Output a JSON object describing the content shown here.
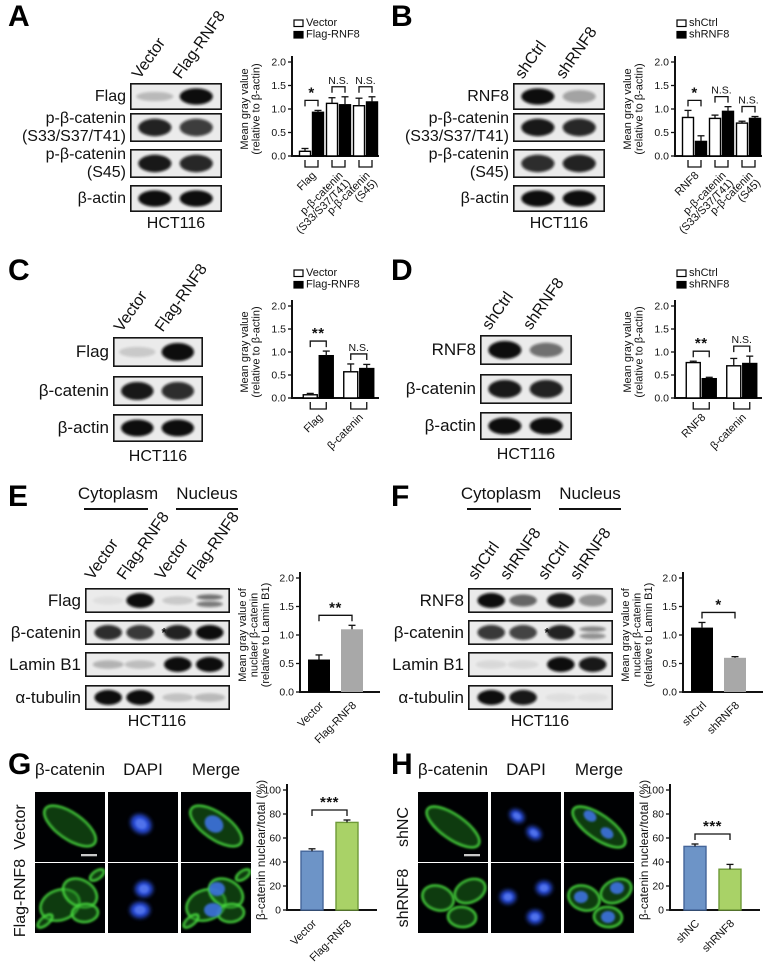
{
  "panels": {
    "A": {
      "label": "A",
      "cell_line": "HCT116",
      "lanes": [
        "Vector",
        "Flag-RNF8"
      ],
      "blot_rows": [
        {
          "label": [
            "Flag"
          ],
          "bands": [
            0.22,
            1
          ]
        },
        {
          "label": [
            "p-β-catenin",
            "(S33/S37/T41)"
          ],
          "bands": [
            0.9,
            0.78
          ]
        },
        {
          "label": [
            "p-β-catenin",
            "(S45)"
          ],
          "bands": [
            0.95,
            0.88
          ]
        },
        {
          "label": [
            "β-actin"
          ],
          "bands": [
            1,
            1
          ]
        }
      ],
      "chart": {
        "type": "bar",
        "legend": [
          {
            "label": "Vector",
            "fill": "#ffffff"
          },
          {
            "label": "Flag-RNF8",
            "fill": "#000000"
          }
        ],
        "ylabel": [
          "Mean gray value",
          "(relative to β-actin)"
        ],
        "ylim": [
          0,
          2
        ],
        "yticks": [
          "0.0",
          "0.5",
          "1.0",
          "1.5",
          "2.0"
        ],
        "categories": [
          [
            "Flag"
          ],
          [
            "p-β-catenin",
            "(S33/S37/T41)"
          ],
          [
            "p-β-catenin",
            "(S45)"
          ]
        ],
        "series": [
          {
            "name": "Vector",
            "fill": "#ffffff",
            "values": [
              0.1,
              1.12,
              1.07
            ],
            "errors": [
              0.06,
              0.12,
              0.16
            ]
          },
          {
            "name": "Flag-RNF8",
            "fill": "#000000",
            "values": [
              0.93,
              1.09,
              1.15
            ],
            "errors": [
              0.04,
              0.17,
              0.11
            ]
          }
        ],
        "significance": [
          "*",
          "N.S.",
          "N.S."
        ]
      }
    },
    "B": {
      "label": "B",
      "cell_line": "HCT116",
      "lanes": [
        "shCtrl",
        "shRNF8"
      ],
      "blot_rows": [
        {
          "label": [
            "RNF8"
          ],
          "bands": [
            1,
            0.32
          ]
        },
        {
          "label": [
            "p-β-catenin",
            "(S33/S37/T41)"
          ],
          "bands": [
            0.95,
            0.88
          ]
        },
        {
          "label": [
            "p-β-catenin",
            "(S45)"
          ],
          "bands": [
            0.85,
            0.9
          ]
        },
        {
          "label": [
            "β-actin"
          ],
          "bands": [
            1,
            1
          ]
        }
      ],
      "chart": {
        "type": "bar",
        "legend": [
          {
            "label": "shCtrl",
            "fill": "#ffffff"
          },
          {
            "label": "shRNF8",
            "fill": "#000000"
          }
        ],
        "ylabel": [
          "Mean gray value",
          "(relative to β-actin)"
        ],
        "ylim": [
          0,
          2
        ],
        "yticks": [
          "0.0",
          "0.5",
          "1.0",
          "1.5",
          "2.0"
        ],
        "categories": [
          [
            "RNF8"
          ],
          [
            "p-β-catenin",
            "(S33/S37/T41)"
          ],
          [
            "p-β-catenin",
            "(S45)"
          ]
        ],
        "series": [
          {
            "name": "shCtrl",
            "fill": "#ffffff",
            "values": [
              0.82,
              0.8,
              0.7
            ],
            "errors": [
              0.15,
              0.07,
              0.04
            ]
          },
          {
            "name": "shRNF8",
            "fill": "#000000",
            "values": [
              0.31,
              0.95,
              0.8
            ],
            "errors": [
              0.12,
              0.1,
              0.04
            ]
          }
        ],
        "significance": [
          "*",
          "N.S.",
          "N.S."
        ]
      }
    },
    "C": {
      "label": "C",
      "cell_line": "HCT116",
      "lanes": [
        "Vector",
        "Flag-RNF8"
      ],
      "blot_rows": [
        {
          "label": [
            "Flag"
          ],
          "bands": [
            0.15,
            1
          ]
        },
        {
          "label": [
            "β-catenin"
          ],
          "bands": [
            0.95,
            0.85
          ]
        },
        {
          "label": [
            "β-actin"
          ],
          "bands": [
            1,
            1
          ]
        }
      ],
      "chart": {
        "type": "bar",
        "legend": [
          {
            "label": "Vector",
            "fill": "#ffffff"
          },
          {
            "label": "Flag-RNF8",
            "fill": "#000000"
          }
        ],
        "ylabel": [
          "Mean gray value",
          "(relative to β-actin)"
        ],
        "ylim": [
          0,
          2
        ],
        "yticks": [
          "0.0",
          "0.5",
          "1.0",
          "1.5",
          "2.0"
        ],
        "categories": [
          [
            "Flag"
          ],
          [
            "β-catenin"
          ]
        ],
        "series": [
          {
            "name": "Vector",
            "fill": "#ffffff",
            "values": [
              0.07,
              0.57
            ],
            "errors": [
              0.03,
              0.17
            ]
          },
          {
            "name": "Flag-RNF8",
            "fill": "#000000",
            "values": [
              0.92,
              0.64
            ],
            "errors": [
              0.1,
              0.09
            ]
          }
        ],
        "significance": [
          "**",
          "N.S."
        ]
      }
    },
    "D": {
      "label": "D",
      "cell_line": "HCT116",
      "lanes": [
        "shCtrl",
        "shRNF8"
      ],
      "blot_rows": [
        {
          "label": [
            "RNF8"
          ],
          "bands": [
            1,
            0.55
          ]
        },
        {
          "label": [
            "β-catenin"
          ],
          "bands": [
            0.95,
            0.9
          ]
        },
        {
          "label": [
            "β-actin"
          ],
          "bands": [
            1,
            1
          ]
        }
      ],
      "chart": {
        "type": "bar",
        "legend": [
          {
            "label": "shCtrl",
            "fill": "#ffffff"
          },
          {
            "label": "shRNF8",
            "fill": "#000000"
          }
        ],
        "ylabel": [
          "Mean gray value",
          "(relative to β-actin)"
        ],
        "ylim": [
          0,
          2
        ],
        "yticks": [
          "0.0",
          "0.5",
          "1.0",
          "1.5",
          "2.0"
        ],
        "categories": [
          [
            "RNF8"
          ],
          [
            "β-catenin"
          ]
        ],
        "series": [
          {
            "name": "shCtrl",
            "fill": "#ffffff",
            "values": [
              0.77,
              0.7
            ],
            "errors": [
              0.03,
              0.16
            ]
          },
          {
            "name": "shRNF8",
            "fill": "#000000",
            "values": [
              0.42,
              0.75
            ],
            "errors": [
              0.03,
              0.16
            ]
          }
        ],
        "significance": [
          "**",
          "N.S."
        ]
      }
    },
    "E": {
      "label": "E",
      "cell_line": "HCT116",
      "group_headers": [
        "Cytoplasm",
        "Nucleus"
      ],
      "lanes": [
        "Vector",
        "Flag-RNF8",
        "Vector",
        "Flag-RNF8"
      ],
      "blot_rows": [
        {
          "label": [
            "Flag"
          ],
          "bands": [
            0.05,
            1,
            0.15,
            {
              "v": 0.5,
              "double": true
            }
          ]
        },
        {
          "label": [
            "β-catenin"
          ],
          "bands": [
            0.85,
            0.8,
            0.9,
            1
          ],
          "marker": "*"
        },
        {
          "label": [
            "Lamin B1"
          ],
          "bands": [
            0.25,
            0.2,
            1,
            1
          ]
        },
        {
          "label": [
            "α-tubulin"
          ],
          "bands": [
            1,
            1,
            0.18,
            0.22
          ]
        }
      ],
      "chart": {
        "type": "bar",
        "ylabel": [
          "Mean gray value of",
          "nuclaer β-catenin",
          "(relative to Lamin B1)"
        ],
        "ylim": [
          0,
          2
        ],
        "yticks": [
          "0.0",
          "0.5",
          "1.0",
          "1.5",
          "2.0"
        ],
        "categories": [
          [
            "Vector"
          ],
          [
            "Flag-RNF8"
          ]
        ],
        "values": [
          0.57,
          1.1
        ],
        "errors": [
          0.08,
          0.07
        ],
        "fills": [
          "#000000",
          "#a8a8a8"
        ],
        "strokes": [
          "none",
          "none"
        ],
        "significance": "**"
      }
    },
    "F": {
      "label": "F",
      "cell_line": "HCT116",
      "group_headers": [
        "Cytoplasm",
        "Nucleus"
      ],
      "lanes": [
        "shCtrl",
        "shRNF8",
        "shCtrl",
        "shRNF8"
      ],
      "blot_rows": [
        {
          "label": [
            "RNF8"
          ],
          "bands": [
            1,
            0.6,
            0.95,
            0.4
          ]
        },
        {
          "label": [
            "β-catenin"
          ],
          "bands": [
            0.8,
            0.75,
            0.9,
            {
              "v": 0.4,
              "double": true
            }
          ],
          "marker": "*"
        },
        {
          "label": [
            "Lamin B1"
          ],
          "bands": [
            0.08,
            0.08,
            1,
            0.95
          ]
        },
        {
          "label": [
            "α-tubulin"
          ],
          "bands": [
            1,
            0.95,
            0.05,
            0.05
          ]
        }
      ],
      "chart": {
        "type": "bar",
        "ylabel": [
          "Mean gray value of",
          "nuclaer β-catenin",
          "(relative to Lamin B1)"
        ],
        "ylim": [
          0,
          2
        ],
        "yticks": [
          "0.0",
          "0.5",
          "1.0",
          "1.5",
          "2.0"
        ],
        "categories": [
          [
            "shCtrl"
          ],
          [
            "shRNF8"
          ]
        ],
        "values": [
          1.13,
          0.6
        ],
        "errors": [
          0.09,
          0.02
        ],
        "fills": [
          "#000000",
          "#a8a8a8"
        ],
        "strokes": [
          "none",
          "none"
        ],
        "significance": "*"
      }
    },
    "G": {
      "label": "G",
      "col_headers": [
        "β-catenin",
        "DAPI",
        "Merge"
      ],
      "row_labels": [
        "Vector",
        "Flag-RNF8"
      ],
      "chart": {
        "type": "bar",
        "ylabel": [
          "β-catenin nuclear/total (%)"
        ],
        "ylim": [
          0,
          100
        ],
        "yticks": [
          "0",
          "20",
          "40",
          "60",
          "80",
          "100"
        ],
        "categories": [
          [
            "Vector"
          ],
          [
            "Flag-RNF8"
          ]
        ],
        "values": [
          49,
          73
        ],
        "errors": [
          2,
          2
        ],
        "fills": [
          "#6d94c7",
          "#a9d267"
        ],
        "strokes": [
          "#44659a",
          "#6e9a38"
        ],
        "significance": "***"
      }
    },
    "H": {
      "label": "H",
      "col_headers": [
        "β-catenin",
        "DAPI",
        "Merge"
      ],
      "row_labels": [
        "shNC",
        "shRNF8"
      ],
      "chart": {
        "type": "bar",
        "ylabel": [
          "β-catenin nuclear/total (%)"
        ],
        "ylim": [
          0,
          100
        ],
        "yticks": [
          "0",
          "20",
          "40",
          "60",
          "80",
          "100"
        ],
        "categories": [
          [
            "shNC"
          ],
          [
            "shRNF8"
          ]
        ],
        "values": [
          53,
          34
        ],
        "errors": [
          2,
          4
        ],
        "fills": [
          "#6d94c7",
          "#a9d267"
        ],
        "strokes": [
          "#44659a",
          "#6e9a38"
        ],
        "significance": "***"
      }
    }
  },
  "colors": {
    "white_bar": "#ffffff",
    "black_bar": "#000000",
    "gray_bar": "#a8a8a8",
    "blue_bar": "#6d94c7",
    "blue_border": "#44659a",
    "green_bar": "#a9d267",
    "green_border": "#6e9a38",
    "if_green": "#46d43c",
    "if_blue": "#2b50e2"
  }
}
